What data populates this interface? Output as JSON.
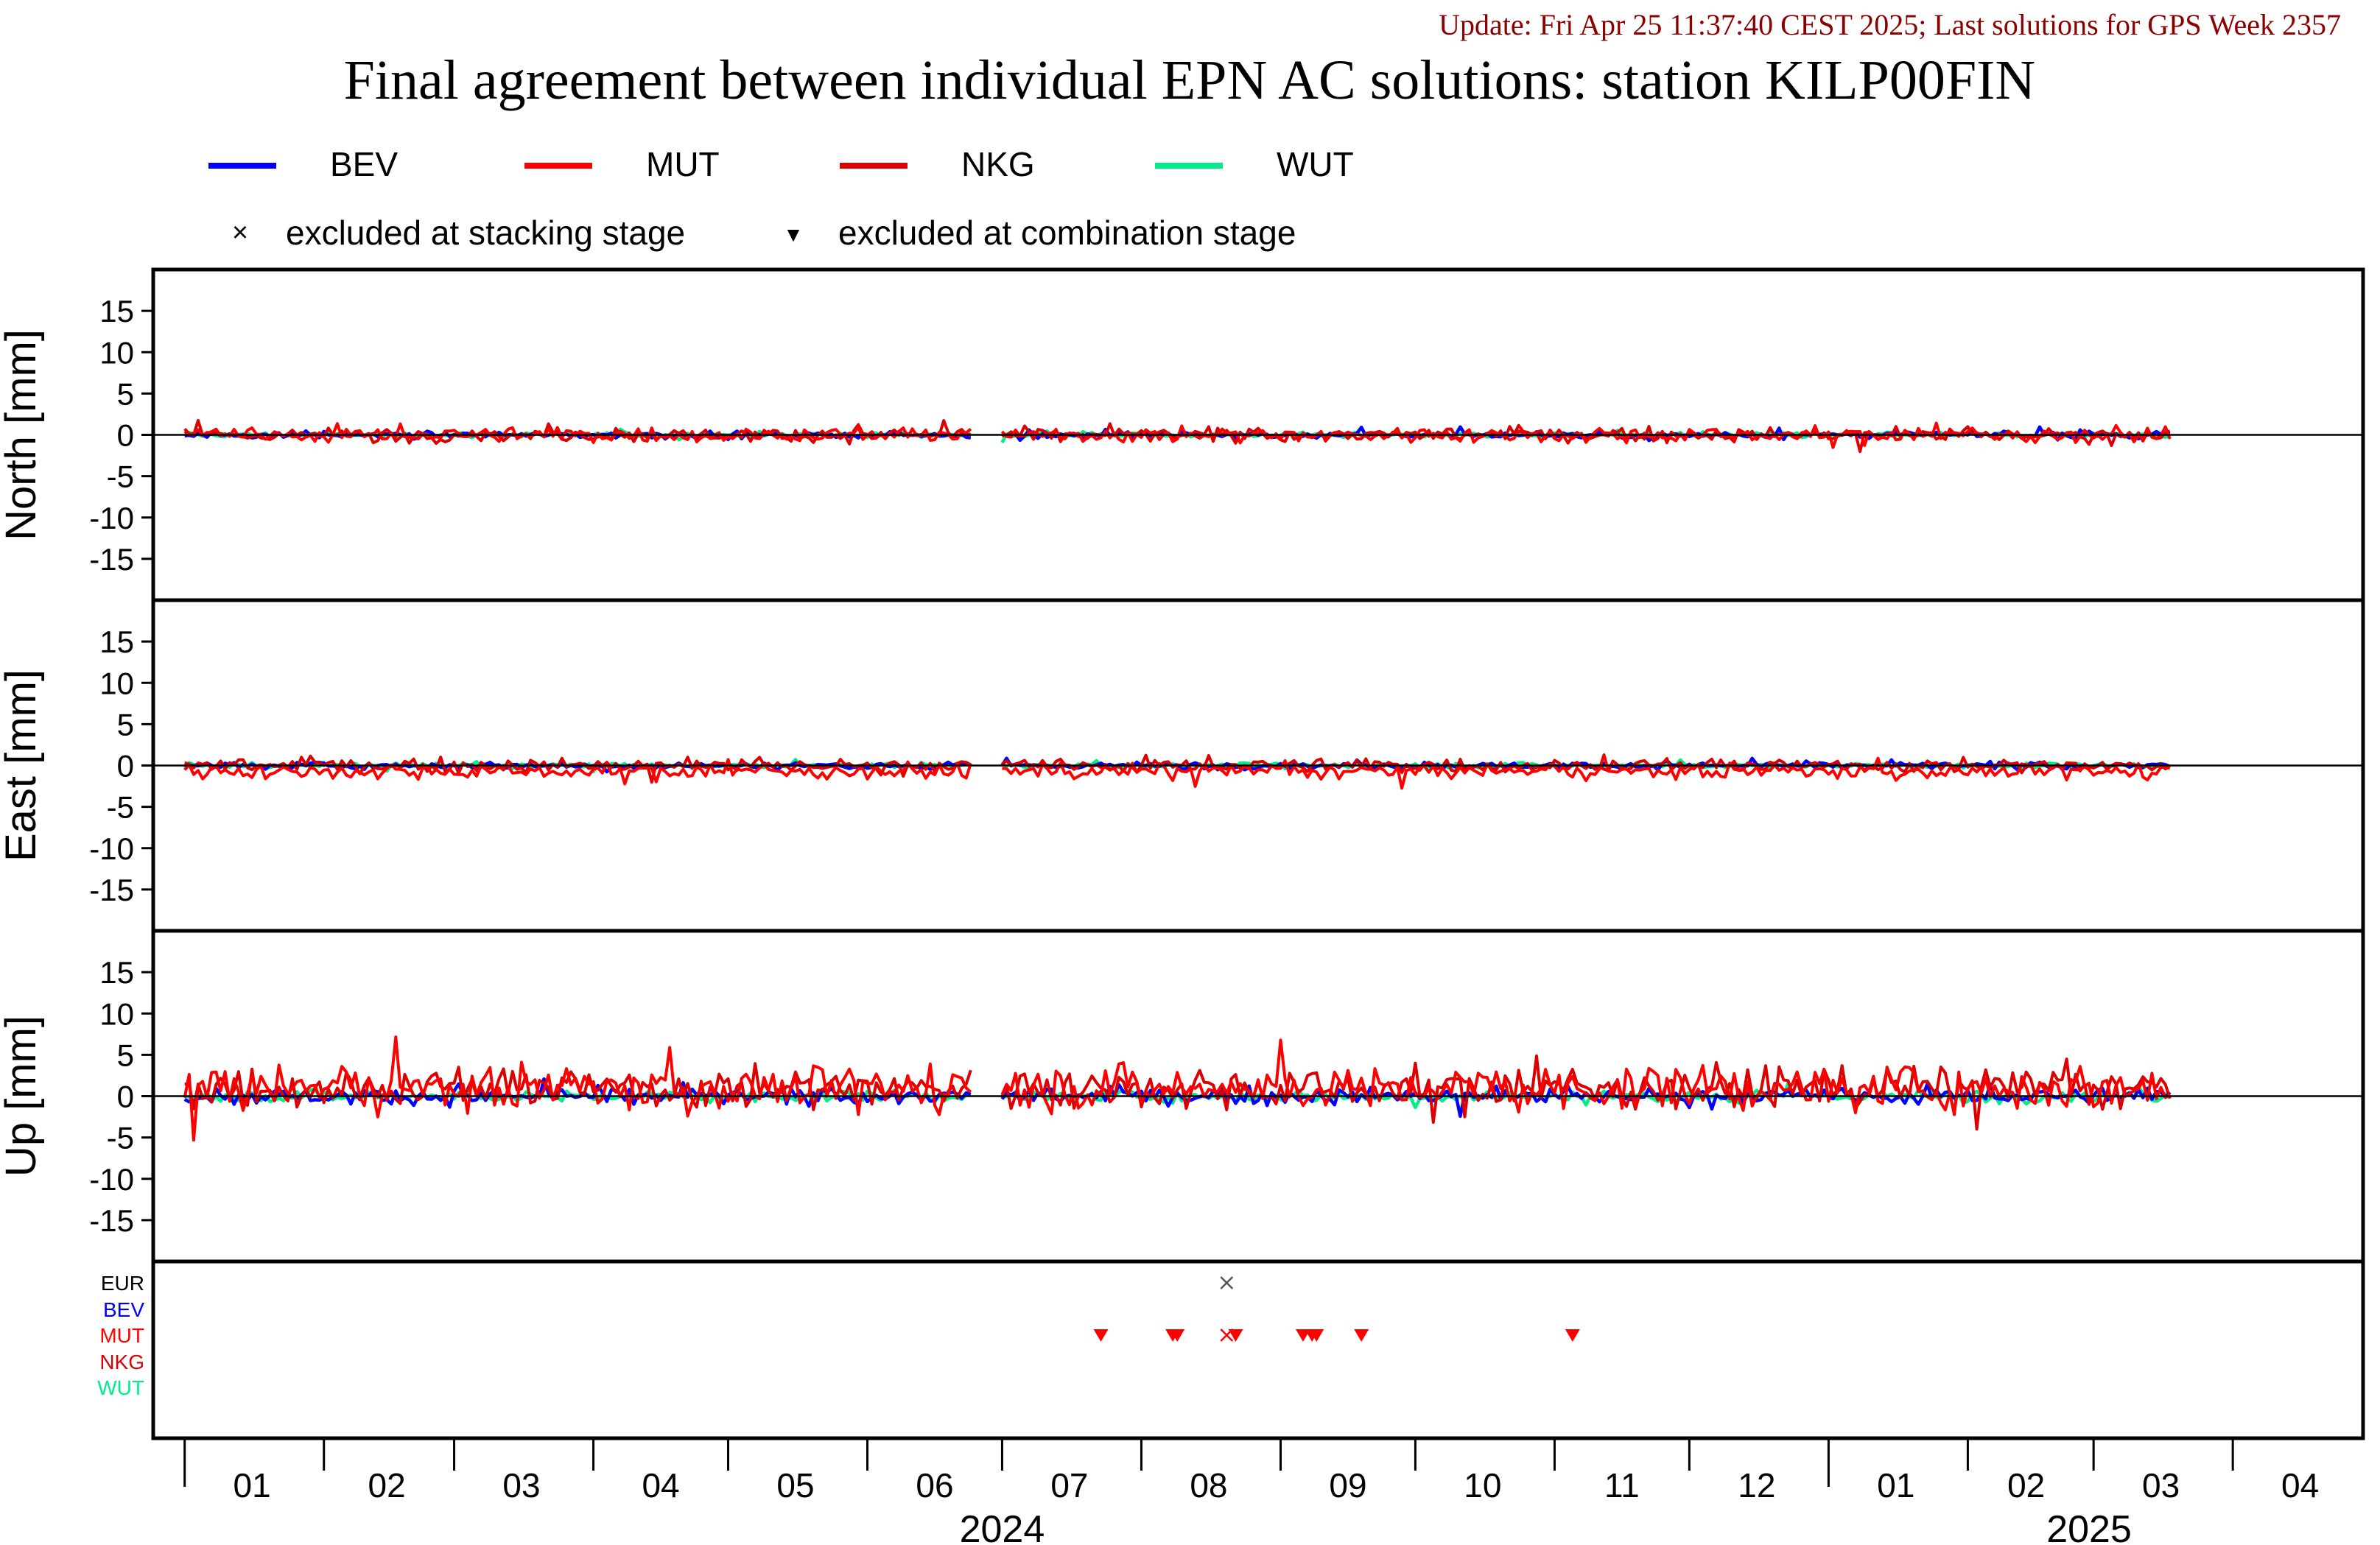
{
  "update_text": "Update: Fri Apr 25 11:37:40 CEST 2025; Last solutions for GPS Week 2357",
  "title": "Final agreement between individual EPN AC solutions: station KILP00FIN",
  "colors": {
    "BEV": "#0000ff",
    "MUT": "#ff0000",
    "NKG": "#dd0000",
    "WUT": "#00ee88",
    "EUR": "#000000",
    "update": "#8b0000",
    "exclusion_marker": "#ff0000",
    "stacking_marker": "#555555"
  },
  "legend": {
    "series": [
      {
        "name": "BEV",
        "color": "#0000ff"
      },
      {
        "name": "MUT",
        "color": "#ff0000"
      },
      {
        "name": "NKG",
        "color": "#dd0000"
      },
      {
        "name": "WUT",
        "color": "#00ee88"
      }
    ],
    "stacking_symbol": "×",
    "stacking_label": "excluded at stacking stage",
    "combination_symbol": "▼",
    "combination_label": "excluded at combination stage"
  },
  "chart_data": {
    "type": "line",
    "x_range": [
      "2023-12-25",
      "2025-04-30"
    ],
    "x_tick_labels": [
      {
        "label": "01",
        "center": "2024-01-16"
      },
      {
        "label": "02",
        "center": "2024-02-15"
      },
      {
        "label": "03",
        "center": "2024-03-16"
      },
      {
        "label": "04",
        "center": "2024-04-16"
      },
      {
        "label": "05",
        "center": "2024-05-16"
      },
      {
        "label": "06",
        "center": "2024-06-16"
      },
      {
        "label": "07",
        "center": "2024-07-16"
      },
      {
        "label": "08",
        "center": "2024-08-16"
      },
      {
        "label": "09",
        "center": "2024-09-16"
      },
      {
        "label": "10",
        "center": "2024-10-16"
      },
      {
        "label": "11",
        "center": "2024-11-16"
      },
      {
        "label": "12",
        "center": "2024-12-16"
      },
      {
        "label": "01",
        "center": "2025-01-16"
      },
      {
        "label": "02",
        "center": "2025-02-14"
      },
      {
        "label": "03",
        "center": "2025-03-16"
      },
      {
        "label": "04",
        "center": "2025-04-16"
      }
    ],
    "x_month_boundaries": [
      "2024-01-01",
      "2024-02-01",
      "2024-03-01",
      "2024-04-01",
      "2024-05-01",
      "2024-06-01",
      "2024-07-01",
      "2024-08-01",
      "2024-09-01",
      "2024-10-01",
      "2024-11-01",
      "2024-12-01",
      "2025-01-01",
      "2025-02-01",
      "2025-03-01",
      "2025-04-01"
    ],
    "x_year_labels": [
      {
        "label": "2024",
        "center": "2024-07-01"
      },
      {
        "label": "2025",
        "center": "2025-02-28"
      }
    ],
    "data_start": "2024-01-01",
    "data_end": "2025-03-18",
    "data_gap": [
      "2024-06-24",
      "2024-07-01"
    ],
    "panels": [
      {
        "name": "North",
        "ylabel": "North [mm]",
        "ylim": [
          -20,
          20
        ],
        "yticks": [
          -15,
          -10,
          -5,
          0,
          5,
          10,
          15
        ],
        "series_amplitude": {
          "BEV": 0.5,
          "MUT": 1.1,
          "NKG": 1.0,
          "WUT": 0.4
        }
      },
      {
        "name": "East",
        "ylabel": "East [mm]",
        "ylim": [
          -20,
          20
        ],
        "yticks": [
          -15,
          -10,
          -5,
          0,
          5,
          10,
          15
        ],
        "series_amplitude": {
          "BEV": 0.5,
          "MUT": 1.1,
          "NKG": 1.0,
          "WUT": 0.4
        }
      },
      {
        "name": "Up",
        "ylabel": "Up [mm]",
        "ylim": [
          -20,
          20
        ],
        "yticks": [
          -15,
          -10,
          -5,
          0,
          5,
          10,
          15
        ],
        "series_amplitude": {
          "BEV": 1.2,
          "MUT": 3.4,
          "NKG": 3.0,
          "WUT": 0.9
        }
      }
    ],
    "exclusion_panel": {
      "rows": [
        "EUR",
        "BEV",
        "MUT",
        "NKG",
        "WUT"
      ],
      "stacking_exclusions": [
        {
          "row": "EUR",
          "date": "2024-08-20"
        },
        {
          "row": "MUT",
          "date": "2024-08-20"
        }
      ],
      "combination_exclusions": [
        {
          "row": "MUT",
          "date": "2024-07-23"
        },
        {
          "row": "MUT",
          "date": "2024-08-08"
        },
        {
          "row": "MUT",
          "date": "2024-08-09"
        },
        {
          "row": "MUT",
          "date": "2024-08-22"
        },
        {
          "row": "MUT",
          "date": "2024-09-06"
        },
        {
          "row": "MUT",
          "date": "2024-09-08"
        },
        {
          "row": "MUT",
          "date": "2024-09-09"
        },
        {
          "row": "MUT",
          "date": "2024-09-19"
        },
        {
          "row": "MUT",
          "date": "2024-11-05"
        }
      ]
    }
  }
}
